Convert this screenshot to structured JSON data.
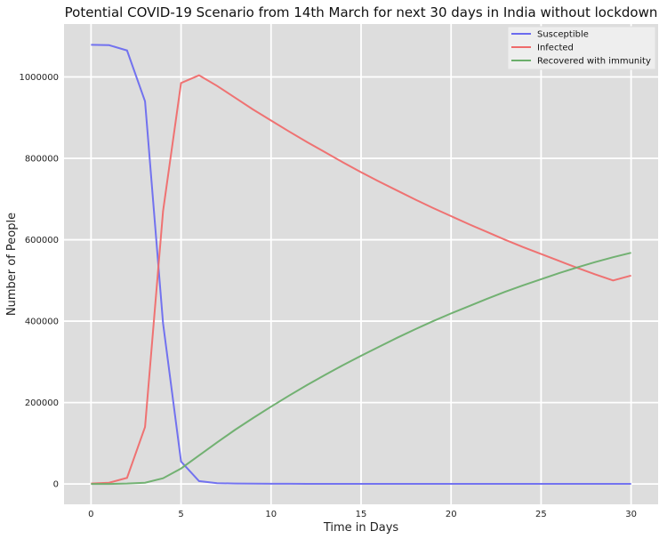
{
  "chart_data": {
    "type": "line",
    "title": "Potential COVID-19 Scenario from 14th March for next 30 days in India without lockdown",
    "xlabel": "Time in Days",
    "ylabel": "Number of People",
    "xlim": [
      -1.5,
      31.5
    ],
    "ylim": [
      -50000,
      1130000
    ],
    "x_ticks": [
      0,
      5,
      10,
      15,
      20,
      25,
      30
    ],
    "y_ticks": [
      0,
      200000,
      400000,
      600000,
      800000,
      1000000
    ],
    "grid": true,
    "legend_position": "top-right",
    "x": [
      0,
      1,
      2,
      3,
      4,
      5,
      6,
      7,
      8,
      9,
      10,
      11,
      12,
      13,
      14,
      15,
      16,
      17,
      18,
      19,
      20,
      21,
      22,
      23,
      24,
      25,
      26,
      27,
      28,
      29,
      30
    ],
    "series": [
      {
        "name": "Susceptible",
        "color": "#6b6bef",
        "values": [
          1079000,
          1078000,
          1065000,
          940000,
          395000,
          55000,
          7000,
          2000,
          1000,
          800,
          600,
          500,
          400,
          400,
          300,
          300,
          300,
          300,
          300,
          300,
          300,
          300,
          300,
          300,
          300,
          300,
          300,
          300,
          300,
          300,
          300
        ]
      },
      {
        "name": "Infected",
        "color": "#ef6b6b",
        "values": [
          1000,
          3000,
          15000,
          140000,
          670000,
          985000,
          1004000,
          978000,
          949000,
          920000,
          893000,
          866000,
          840000,
          815000,
          790000,
          766000,
          743000,
          721000,
          699000,
          678000,
          658000,
          638000,
          619000,
          600000,
          582000,
          565000,
          548000,
          531000,
          515000,
          500000,
          512000
        ]
      },
      {
        "name": "Recovered with immunity",
        "color": "#6bae6b",
        "values": [
          0,
          0,
          1000,
          3000,
          14000,
          38000,
          70000,
          102000,
          133000,
          162000,
          190000,
          217000,
          243000,
          268000,
          292000,
          315000,
          337000,
          359000,
          380000,
          400000,
          419000,
          437000,
          455000,
          472000,
          488000,
          503000,
          518000,
          532000,
          545000,
          557000,
          568000
        ]
      }
    ]
  }
}
